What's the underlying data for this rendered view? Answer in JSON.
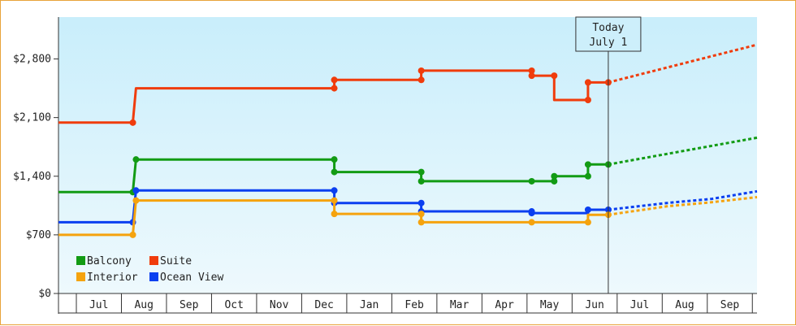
{
  "chart_data": {
    "type": "line",
    "y_ticks": [
      "$0",
      "$700",
      "$1,400",
      "$2,100",
      "$2,800"
    ],
    "y_tick_values": [
      0,
      700,
      1400,
      2100,
      2800
    ],
    "ylim": [
      0,
      3300
    ],
    "months": [
      "Jul",
      "Aug",
      "Sep",
      "Oct",
      "Nov",
      "Dec",
      "Jan",
      "Feb",
      "Mar",
      "Apr",
      "May",
      "Jun",
      "Jul",
      "Aug",
      "Sep"
    ],
    "xlim": [
      0,
      15.5
    ],
    "today": {
      "line1": "Today",
      "line2": "July 1",
      "x": 12.2
    },
    "colors": {
      "Balcony": "#129b14",
      "Suite": "#f03c0c",
      "Interior": "#f5a30e",
      "Ocean View": "#0b3ff0",
      "background_top": "#c9eefb",
      "background_bottom": "#eef9fd"
    },
    "legend": [
      "Balcony",
      "Suite",
      "Interior",
      "Ocean View"
    ],
    "series": [
      {
        "name": "Suite",
        "points": [
          [
            0,
            2040
          ],
          [
            1.65,
            2040
          ],
          [
            1.65,
            2040
          ],
          [
            1.65,
            2040
          ],
          [
            1.72,
            2450
          ],
          [
            6.12,
            2450
          ],
          [
            6.12,
            2450
          ],
          [
            6.12,
            2550
          ],
          [
            8.05,
            2550
          ],
          [
            8.05,
            2550
          ],
          [
            8.05,
            2660
          ],
          [
            10.5,
            2660
          ],
          [
            10.5,
            2660
          ],
          [
            10.5,
            2600
          ],
          [
            11.0,
            2600
          ],
          [
            11.0,
            2600
          ],
          [
            11.0,
            2310
          ],
          [
            11.75,
            2310
          ],
          [
            11.75,
            2310
          ],
          [
            11.75,
            2520
          ],
          [
            12.2,
            2520
          ]
        ],
        "markers": [
          [
            1.65,
            2040
          ],
          [
            6.12,
            2450
          ],
          [
            6.12,
            2550
          ],
          [
            8.05,
            2550
          ],
          [
            8.05,
            2660
          ],
          [
            10.5,
            2660
          ],
          [
            10.5,
            2600
          ],
          [
            11.0,
            2600
          ],
          [
            11.75,
            2310
          ],
          [
            11.75,
            2520
          ],
          [
            12.2,
            2520
          ]
        ],
        "forecast": [
          [
            12.2,
            2520
          ],
          [
            15.5,
            2970
          ]
        ]
      },
      {
        "name": "Balcony",
        "points": [
          [
            0,
            1210
          ],
          [
            1.65,
            1210
          ],
          [
            1.72,
            1600
          ],
          [
            6.12,
            1600
          ],
          [
            6.12,
            1450
          ],
          [
            8.05,
            1450
          ],
          [
            8.05,
            1340
          ],
          [
            10.5,
            1340
          ],
          [
            11.0,
            1340
          ],
          [
            11.0,
            1400
          ],
          [
            11.75,
            1400
          ],
          [
            11.75,
            1540
          ],
          [
            12.2,
            1540
          ]
        ],
        "markers": [
          [
            1.65,
            1210
          ],
          [
            1.72,
            1600
          ],
          [
            6.12,
            1600
          ],
          [
            6.12,
            1450
          ],
          [
            8.05,
            1450
          ],
          [
            8.05,
            1340
          ],
          [
            10.5,
            1340
          ],
          [
            11.0,
            1340
          ],
          [
            11.0,
            1400
          ],
          [
            11.75,
            1400
          ],
          [
            11.75,
            1540
          ],
          [
            12.2,
            1540
          ]
        ],
        "forecast": [
          [
            12.2,
            1540
          ],
          [
            15.5,
            1860
          ]
        ]
      },
      {
        "name": "Ocean View",
        "points": [
          [
            0,
            850
          ],
          [
            1.65,
            850
          ],
          [
            1.72,
            1230
          ],
          [
            6.12,
            1230
          ],
          [
            6.12,
            1080
          ],
          [
            8.05,
            1080
          ],
          [
            8.05,
            980
          ],
          [
            10.5,
            980
          ],
          [
            10.5,
            960
          ],
          [
            11.75,
            960
          ],
          [
            11.75,
            1000
          ],
          [
            12.2,
            1000
          ]
        ],
        "markers": [
          [
            1.65,
            850
          ],
          [
            1.72,
            1230
          ],
          [
            6.12,
            1230
          ],
          [
            6.12,
            1080
          ],
          [
            8.05,
            1080
          ],
          [
            8.05,
            980
          ],
          [
            10.5,
            980
          ],
          [
            10.5,
            960
          ],
          [
            11.75,
            1000
          ],
          [
            12.2,
            1000
          ]
        ],
        "forecast": [
          [
            12.2,
            1000
          ],
          [
            13.5,
            1080
          ],
          [
            14.5,
            1130
          ],
          [
            15.5,
            1220
          ]
        ]
      },
      {
        "name": "Interior",
        "points": [
          [
            0,
            700
          ],
          [
            1.65,
            700
          ],
          [
            1.72,
            1110
          ],
          [
            6.12,
            1110
          ],
          [
            6.12,
            950
          ],
          [
            8.05,
            950
          ],
          [
            8.05,
            850
          ],
          [
            10.5,
            850
          ],
          [
            11.75,
            850
          ],
          [
            11.75,
            940
          ],
          [
            12.2,
            940
          ]
        ],
        "markers": [
          [
            1.65,
            700
          ],
          [
            1.72,
            1110
          ],
          [
            6.12,
            1110
          ],
          [
            6.12,
            950
          ],
          [
            8.05,
            950
          ],
          [
            8.05,
            850
          ],
          [
            10.5,
            850
          ],
          [
            11.75,
            850
          ],
          [
            12.2,
            940
          ]
        ],
        "forecast": [
          [
            12.2,
            940
          ],
          [
            13.5,
            1040
          ],
          [
            14.5,
            1090
          ],
          [
            15.5,
            1150
          ]
        ]
      }
    ]
  }
}
